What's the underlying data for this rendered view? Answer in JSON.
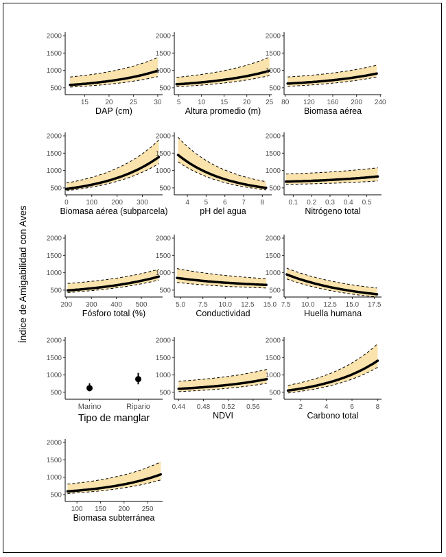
{
  "figure": {
    "ylabel": "Índice de Amigabilidad con Aves"
  },
  "chart_data": [
    {
      "type": "line",
      "xlabel": "DAP (cm)",
      "xlim": [
        11,
        31
      ],
      "xticks": [
        15,
        20,
        25,
        30
      ],
      "ylim": [
        300,
        2100
      ],
      "yticks": [
        500,
        1000,
        1500,
        2000
      ],
      "x": [
        12,
        30
      ],
      "fit": [
        580,
        990
      ],
      "lower": [
        520,
        820
      ],
      "upper": [
        810,
        1370
      ],
      "curvature": 1.5
    },
    {
      "type": "line",
      "xlabel": "Altura promedio (m)",
      "xlim": [
        4,
        25.5
      ],
      "xticks": [
        5,
        10,
        15,
        20,
        25
      ],
      "ylim": [
        300,
        2100
      ],
      "yticks": [
        500,
        1000,
        1500,
        2000
      ],
      "x": [
        4.5,
        25
      ],
      "fit": [
        600,
        990
      ],
      "lower": [
        530,
        850
      ],
      "upper": [
        800,
        1380
      ],
      "curvature": 1.5
    },
    {
      "type": "line",
      "xlabel": "Biomasa aérea",
      "xlim": [
        78,
        242
      ],
      "xticks": [
        80,
        120,
        160,
        200,
        240
      ],
      "ylim": [
        300,
        2100
      ],
      "yticks": [
        500,
        1000,
        1500,
        2000
      ],
      "x": [
        84,
        234
      ],
      "fit": [
        620,
        910
      ],
      "lower": [
        540,
        810
      ],
      "upper": [
        810,
        1150
      ],
      "curvature": 1.4
    },
    {
      "type": "line",
      "xlabel": "Biomasa aérea (subparcela)",
      "xlim": [
        -5,
        380
      ],
      "xticks": [
        0,
        100,
        200,
        300
      ],
      "ylim": [
        300,
        2100
      ],
      "yticks": [
        500,
        1000,
        1500,
        2000
      ],
      "x": [
        0,
        365
      ],
      "fit": [
        470,
        1390
      ],
      "lower": [
        420,
        1200
      ],
      "upper": [
        640,
        1880
      ],
      "curvature": 1.7
    },
    {
      "type": "line",
      "xlabel": "pH del agua",
      "xlim": [
        3.3,
        8.5
      ],
      "xticks": [
        4,
        5,
        6,
        7,
        8
      ],
      "ylim": [
        300,
        2100
      ],
      "yticks": [
        500,
        1000,
        1500,
        2000
      ],
      "x": [
        3.5,
        8.2
      ],
      "fit": [
        1450,
        500
      ],
      "lower": [
        1250,
        440
      ],
      "upper": [
        1960,
        680
      ],
      "curvature": -1.8
    },
    {
      "type": "line",
      "xlabel": "Nitrógeno total",
      "xlim": [
        0.05,
        0.58
      ],
      "xticks": [
        0.1,
        0.2,
        0.3,
        0.4,
        0.5
      ],
      "ylim": [
        300,
        2100
      ],
      "yticks": [
        500,
        1000,
        1500,
        2000
      ],
      "x": [
        0.06,
        0.56
      ],
      "fit": [
        680,
        830
      ],
      "lower": [
        600,
        700
      ],
      "upper": [
        900,
        1080
      ],
      "curvature": 1.3
    },
    {
      "type": "line",
      "xlabel": "Fósforo total (%)",
      "xlim": [
        195,
        585
      ],
      "xticks": [
        200,
        300,
        400,
        500
      ],
      "ylim": [
        300,
        2100
      ],
      "yticks": [
        500,
        1000,
        1500,
        2000
      ],
      "x": [
        205,
        570
      ],
      "fit": [
        490,
        890
      ],
      "lower": [
        430,
        790
      ],
      "upper": [
        690,
        1100
      ],
      "curvature": 1.3
    },
    {
      "type": "line",
      "xlabel": "Conductividad",
      "xlim": [
        4.3,
        15.2
      ],
      "xticks": [
        5.0,
        7.5,
        10.0,
        12.5,
        15.0
      ],
      "ylim": [
        300,
        2100
      ],
      "yticks": [
        500,
        1000,
        1500,
        2000
      ],
      "x": [
        4.6,
        14.6
      ],
      "fit": [
        850,
        650
      ],
      "lower": [
        720,
        560
      ],
      "upper": [
        1120,
        830
      ],
      "curvature": -1.2
    },
    {
      "type": "line",
      "xlabel": "Huella humana",
      "xlim": [
        7.3,
        18.3
      ],
      "xticks": [
        7.5,
        10.0,
        12.5,
        15.0,
        17.5
      ],
      "ylim": [
        300,
        2100
      ],
      "yticks": [
        500,
        1000,
        1500,
        2000
      ],
      "x": [
        7.6,
        17.8
      ],
      "fit": [
        950,
        380
      ],
      "lower": [
        820,
        300
      ],
      "upper": [
        1130,
        560
      ],
      "curvature": -1.3
    },
    {
      "type": "scatter",
      "xlabel": "Tipo de manglar",
      "categories": [
        "Marino",
        "Ripario"
      ],
      "ylim": [
        300,
        2100
      ],
      "yticks": [
        500,
        1000,
        1500,
        2000
      ],
      "values": [
        620,
        880
      ],
      "lower": [
        530,
        730
      ],
      "upper": [
        760,
        1060
      ]
    },
    {
      "type": "line",
      "xlabel": "NDVI",
      "xlim": [
        0.433,
        0.59
      ],
      "xticks": [
        0.44,
        0.48,
        0.52,
        0.56
      ],
      "ylim": [
        300,
        2100
      ],
      "yticks": [
        500,
        1000,
        1500,
        2000
      ],
      "x": [
        0.44,
        0.582
      ],
      "fit": [
        600,
        880
      ],
      "lower": [
        520,
        760
      ],
      "upper": [
        820,
        1160
      ],
      "curvature": 1.3
    },
    {
      "type": "line",
      "xlabel": "Carbono total",
      "xlim": [
        0.7,
        8.3
      ],
      "xticks": [
        2,
        4,
        6,
        8
      ],
      "ylim": [
        300,
        2100
      ],
      "yticks": [
        500,
        1000,
        1500,
        2000
      ],
      "x": [
        1,
        8
      ],
      "fit": [
        550,
        1410
      ],
      "lower": [
        480,
        1220
      ],
      "upper": [
        700,
        1900
      ],
      "curvature": 1.6
    },
    {
      "type": "line",
      "xlabel": "Biomasa subterránea",
      "xlim": [
        75,
        282
      ],
      "xticks": [
        100,
        150,
        200,
        250
      ],
      "ylim": [
        300,
        2100
      ],
      "yticks": [
        500,
        1000,
        1500,
        2000
      ],
      "x": [
        80,
        278
      ],
      "fit": [
        590,
        1080
      ],
      "lower": [
        530,
        920
      ],
      "upper": [
        800,
        1440
      ],
      "curvature": 1.6
    }
  ]
}
